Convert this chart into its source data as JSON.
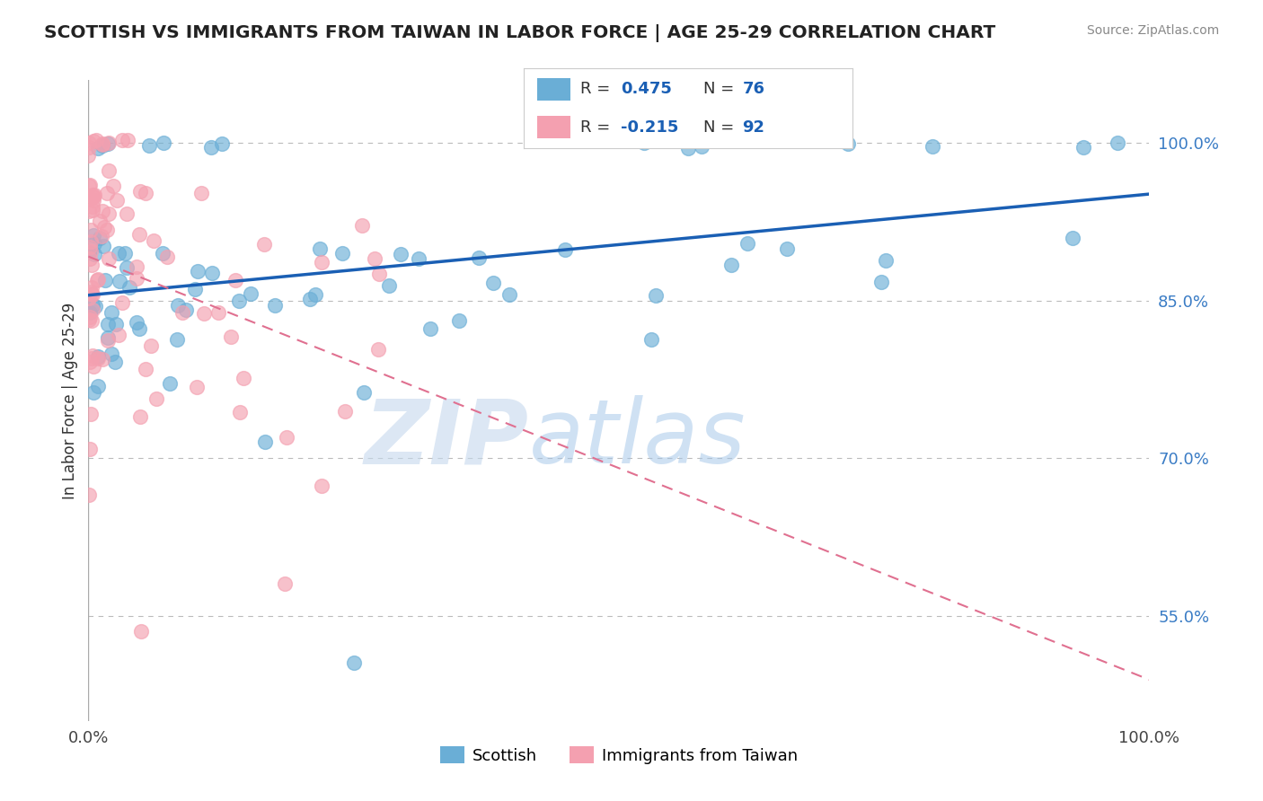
{
  "title": "SCOTTISH VS IMMIGRANTS FROM TAIWAN IN LABOR FORCE | AGE 25-29 CORRELATION CHART",
  "source": "Source: ZipAtlas.com",
  "ylabel": "In Labor Force | Age 25-29",
  "xlim": [
    0.0,
    1.0
  ],
  "ylim": [
    0.45,
    1.06
  ],
  "x_ticks": [
    0.0,
    1.0
  ],
  "x_tick_labels": [
    "0.0%",
    "100.0%"
  ],
  "y_ticks": [
    0.55,
    0.7,
    0.85,
    1.0
  ],
  "y_tick_labels": [
    "55.0%",
    "70.0%",
    "85.0%",
    "100.0%"
  ],
  "scottish_color": "#6aaed6",
  "taiwan_color": "#f4a0b0",
  "scottish_R": 0.475,
  "scottish_N": 76,
  "taiwan_R": -0.215,
  "taiwan_N": 92,
  "legend_labels": [
    "Scottish",
    "Immigrants from Taiwan"
  ],
  "watermark_zip": "ZIP",
  "watermark_atlas": "atlas",
  "background_color": "#ffffff",
  "grid_color": "#cccccc",
  "seed_scottish": 42,
  "seed_taiwan": 99
}
